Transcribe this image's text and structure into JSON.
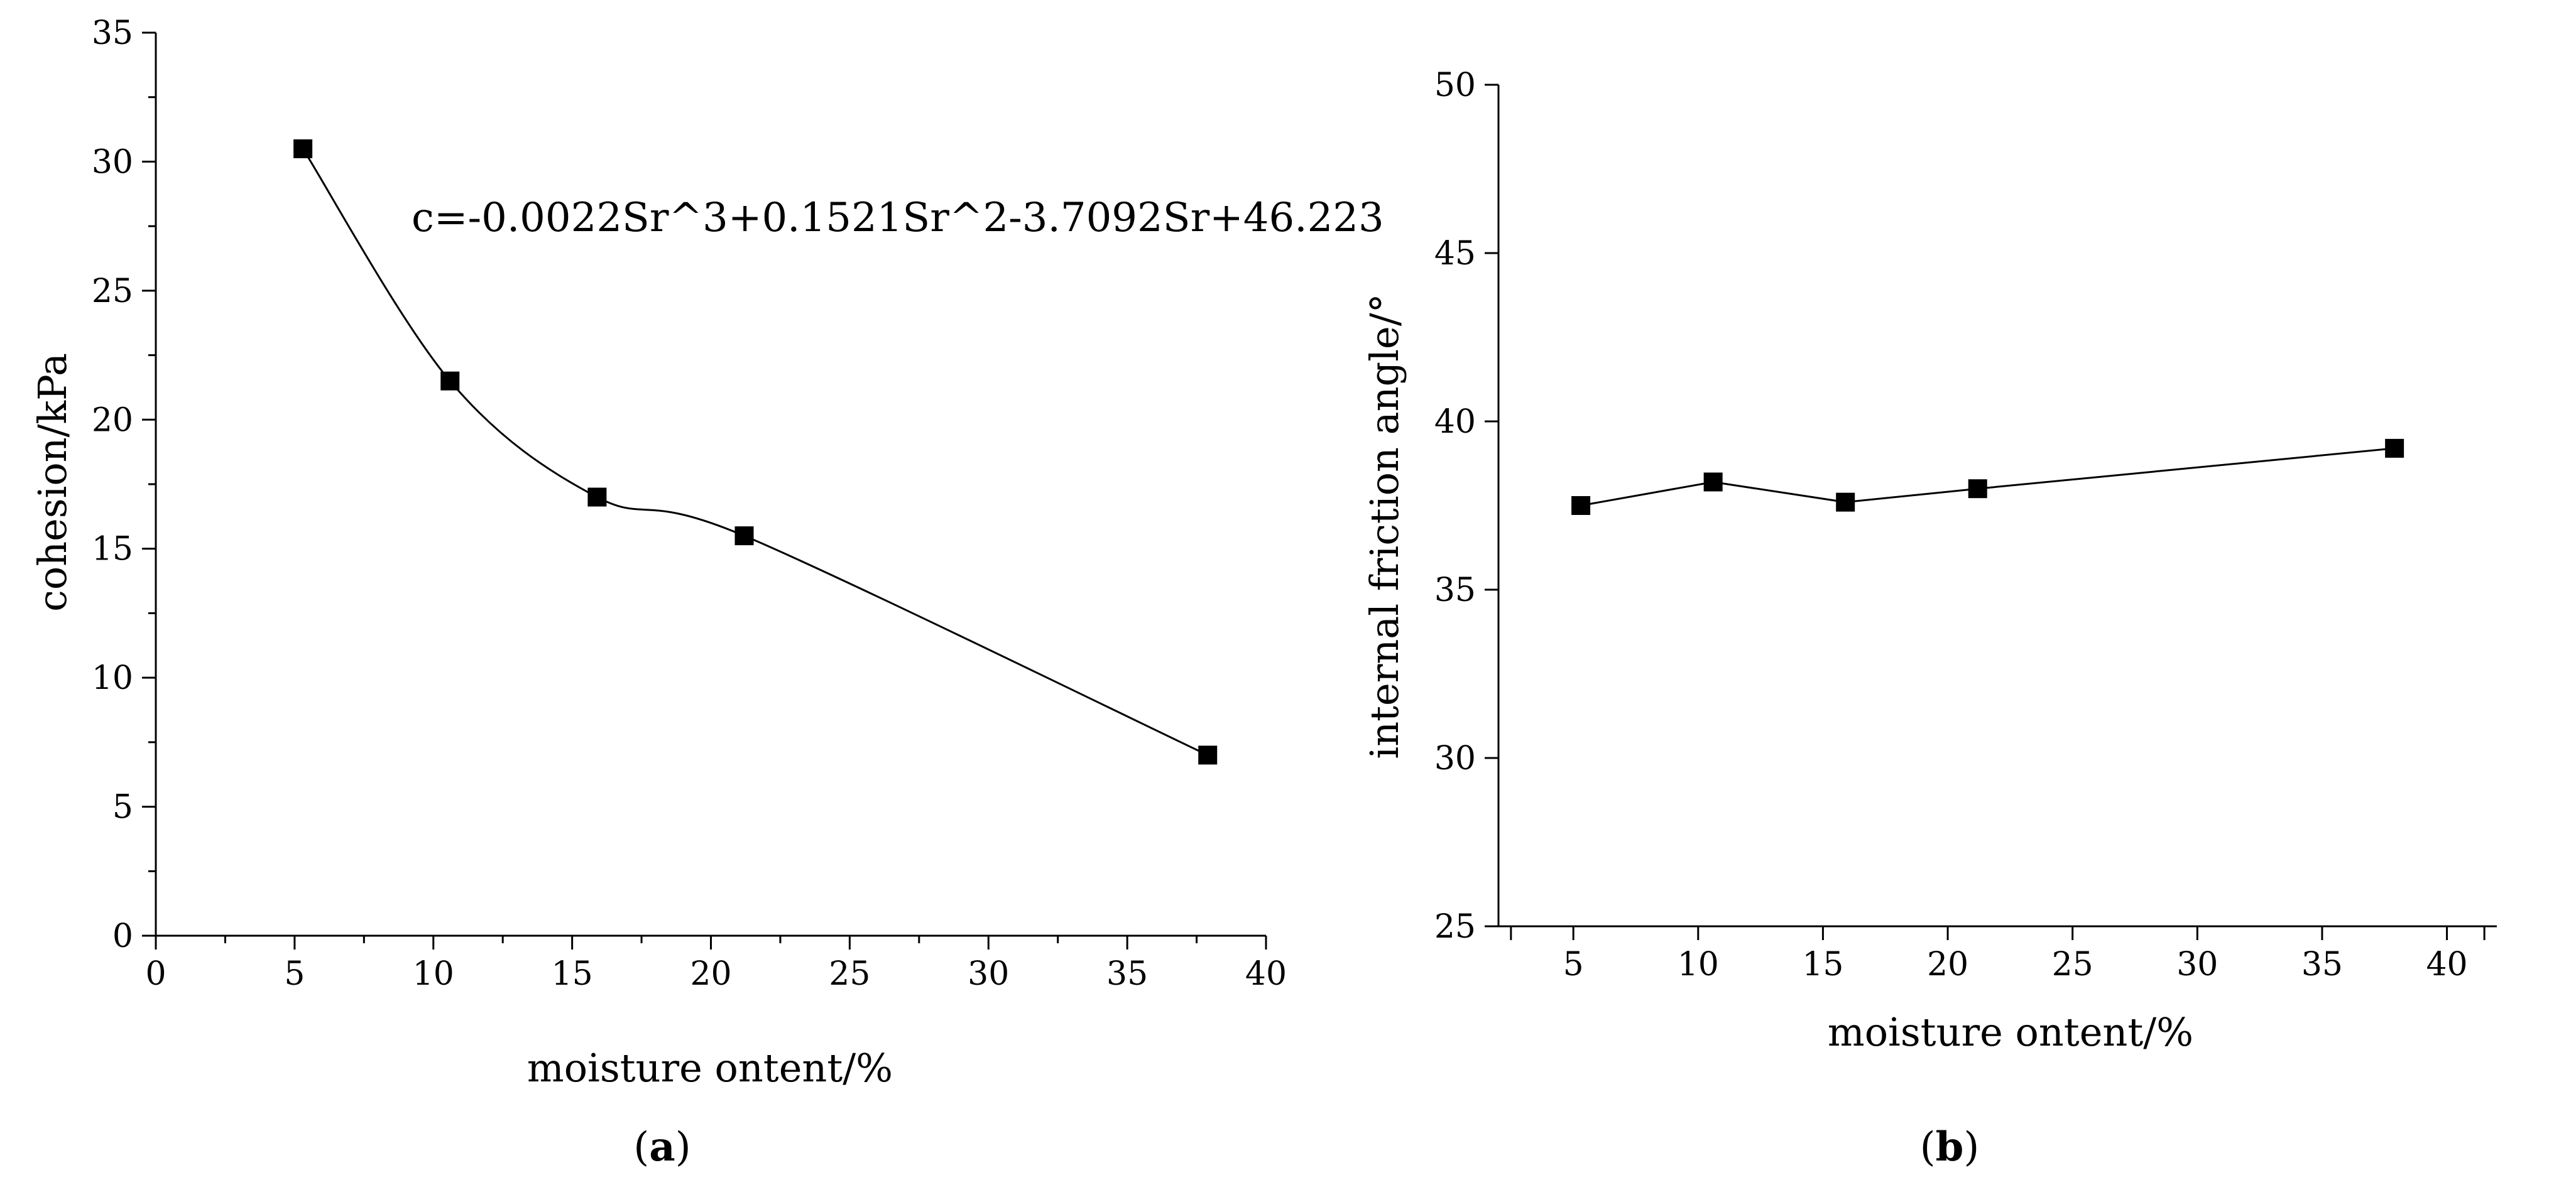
{
  "chart_data": [
    {
      "type": "line",
      "panel": "a",
      "caption_open": "(",
      "caption_letter": "a",
      "caption_close": ")",
      "title": "",
      "xlabel": "moisture ontent/%",
      "ylabel": "cohesion/kPa",
      "xlim": [
        0,
        40
      ],
      "ylim": [
        0,
        35
      ],
      "x_ticks": [
        0,
        5,
        10,
        15,
        20,
        25,
        30,
        35,
        40
      ],
      "y_ticks": [
        0,
        5,
        10,
        15,
        20,
        25,
        30,
        35
      ],
      "smooth": true,
      "series": [
        {
          "name": "cohesion",
          "x": [
            5.3,
            10.6,
            15.9,
            21.2,
            37.9
          ],
          "y": [
            30.5,
            21.5,
            17.0,
            15.5,
            7.0
          ]
        }
      ],
      "annotation": "c=-0.0022Sr^3+0.1521Sr^2-3.7092Sr+46.223"
    },
    {
      "type": "line",
      "panel": "b",
      "caption_open": "(",
      "caption_letter": "b",
      "caption_close": ")",
      "title": "",
      "xlabel": "moisture ontent/%",
      "ylabel": "internal friction angle/°",
      "xlim": [
        2,
        42
      ],
      "ylim": [
        25,
        50
      ],
      "x_ticks": [
        5,
        10,
        15,
        20,
        25,
        30,
        35,
        40
      ],
      "y_ticks": [
        25,
        30,
        35,
        40,
        45,
        50
      ],
      "smooth": false,
      "series": [
        {
          "name": "internal friction angle",
          "x": [
            5.3,
            10.6,
            15.9,
            21.2,
            37.9
          ],
          "y": [
            37.5,
            38.2,
            37.6,
            38.0,
            39.2
          ]
        }
      ]
    }
  ]
}
